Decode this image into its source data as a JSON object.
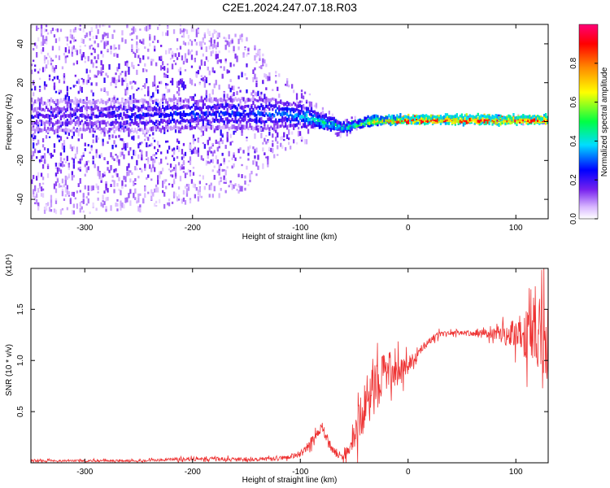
{
  "figure_title": "C2E1.2024.247.07.18.R03",
  "colors": {
    "snr_line": "#ee3333",
    "colormap": [
      "#ffffff",
      "#d9b8ff",
      "#7722ee",
      "#3322ff",
      "#0000ff",
      "#00ddff",
      "#00ff44",
      "#ffff00",
      "#ff8800",
      "#ff0000",
      "#ff0077"
    ]
  },
  "chart_data": [
    {
      "type": "heatmap",
      "title": "",
      "xlabel": "Height of straight line (km)",
      "ylabel": "Frequency (Hz)",
      "xlim": [
        -350,
        130
      ],
      "ylim": [
        -50,
        50
      ],
      "xticks": [
        -300,
        -200,
        -100,
        0,
        100
      ],
      "xtick_labels": [
        "-300",
        "-200",
        "-100",
        "0",
        "100"
      ],
      "yticks": [
        -40,
        -20,
        0,
        20,
        40
      ],
      "ytick_labels": [
        "-40",
        "-20",
        "0",
        "20",
        "40"
      ],
      "colorbar": {
        "label": "Normalized spectral amplitude",
        "range": [
          0,
          1
        ],
        "ticks": [
          0.0,
          0.2,
          0.4,
          0.6,
          0.8
        ],
        "tick_labels": [
          "0.0",
          "0.2",
          "0.4",
          "0.6",
          "0.8"
        ]
      },
      "description_points": {
        "ridge_x": [
          -350,
          -300,
          -250,
          -200,
          -150,
          -120,
          -100,
          -80,
          -60,
          -40,
          -20,
          0,
          50,
          100,
          130
        ],
        "ridge_freq": [
          3,
          3,
          3,
          4,
          4,
          4,
          3,
          0,
          -3,
          0,
          1,
          1,
          1,
          1,
          1
        ],
        "ridge_amplitude": [
          0.18,
          0.18,
          0.22,
          0.25,
          0.25,
          0.3,
          0.35,
          0.45,
          0.45,
          0.6,
          0.75,
          0.9,
          0.9,
          0.9,
          0.9
        ],
        "noise_halfwidth_hz": [
          50,
          50,
          50,
          45,
          40,
          20,
          15,
          8,
          5,
          3,
          2,
          2,
          2,
          2,
          2
        ]
      }
    },
    {
      "type": "line",
      "title": "",
      "xlabel": "Height of straight line (km)",
      "ylabel": "SNR (10 * v/v)",
      "y_multiplier": "(x10⁴)",
      "xlim": [
        -350,
        130
      ],
      "ylim": [
        0,
        1.9
      ],
      "xticks": [
        -300,
        -200,
        -100,
        0,
        100
      ],
      "xtick_labels": [
        "-300",
        "-200",
        "-100",
        "0",
        "100"
      ],
      "yticks": [
        0.5,
        1.0,
        1.5
      ],
      "ytick_labels": [
        "0.5",
        "1.0",
        "1.5"
      ],
      "series": [
        {
          "name": "",
          "x": [
            -350,
            -300,
            -250,
            -200,
            -150,
            -120,
            -100,
            -90,
            -80,
            -70,
            -60,
            -50,
            -40,
            -30,
            -20,
            -10,
            0,
            10,
            20,
            30,
            40,
            50,
            60,
            70,
            80,
            90,
            100,
            110,
            120,
            130
          ],
          "y": [
            0.02,
            0.02,
            0.02,
            0.04,
            0.03,
            0.04,
            0.08,
            0.2,
            0.35,
            0.12,
            0.05,
            0.25,
            0.55,
            0.8,
            0.9,
            0.9,
            0.95,
            1.1,
            1.2,
            1.25,
            1.27,
            1.27,
            1.27,
            1.27,
            1.27,
            1.25,
            1.27,
            1.25,
            1.3,
            1.2
          ],
          "noise_amplitude": [
            0.01,
            0.01,
            0.01,
            0.02,
            0.02,
            0.02,
            0.03,
            0.05,
            0.05,
            0.05,
            0.03,
            0.15,
            0.25,
            0.3,
            0.2,
            0.15,
            0.08,
            0.05,
            0.04,
            0.03,
            0.02,
            0.02,
            0.03,
            0.04,
            0.06,
            0.1,
            0.15,
            0.25,
            0.4,
            0.4
          ]
        }
      ]
    }
  ]
}
